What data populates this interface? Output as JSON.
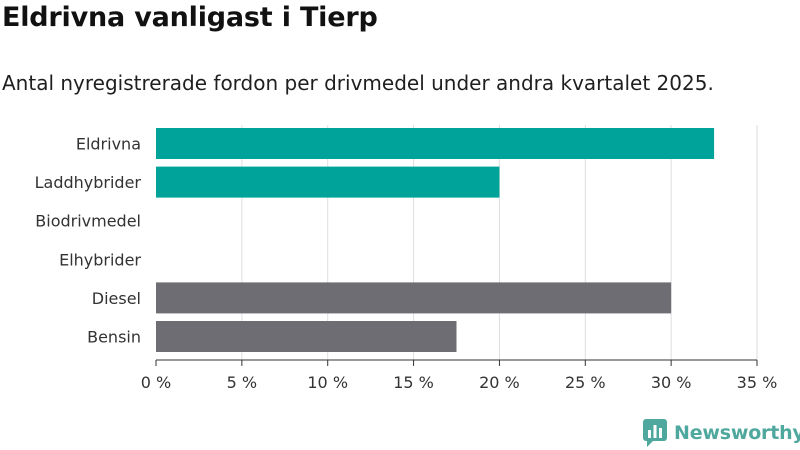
{
  "title": "Eldrivna vanligast i Tierp",
  "subtitle": "Antal nyregistrerade fordon per drivmedel under andra kvartalet 2025.",
  "brand": {
    "name": "Newsworthy",
    "icon": "newsworthy-logo-icon",
    "color": "#4fa89d"
  },
  "chart_data": {
    "type": "bar",
    "orientation": "horizontal",
    "categories": [
      "Eldrivna",
      "Laddhybrider",
      "Biodrivmedel",
      "Elhybrider",
      "Diesel",
      "Bensin"
    ],
    "values": [
      32.5,
      20.0,
      0,
      0,
      30.0,
      17.5
    ],
    "colors": [
      "#00a39a",
      "#00a39a",
      "#00a39a",
      "#00a39a",
      "#6e6d73",
      "#6e6d73"
    ],
    "xlim": [
      0,
      35
    ],
    "xticks": [
      0,
      5,
      10,
      15,
      20,
      25,
      30,
      35
    ],
    "xtick_labels": [
      "0 %",
      "5 %",
      "10 %",
      "15 %",
      "20 %",
      "25 %",
      "30 %",
      "35 %"
    ],
    "grid": "vertical",
    "legend": "none"
  }
}
